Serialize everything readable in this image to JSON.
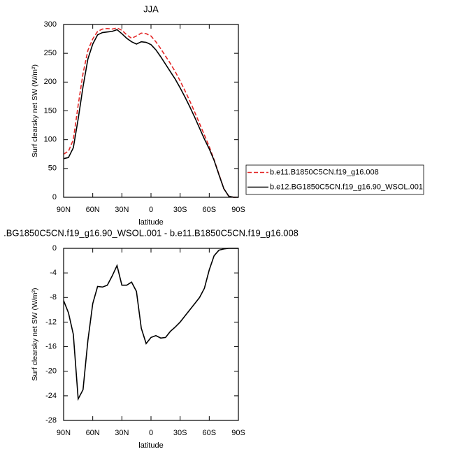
{
  "chart_data": [
    {
      "type": "line",
      "title": "JJA",
      "xlabel": "latitude",
      "ylabel": "Surf clearsky net SW (W/m²)",
      "x": [
        90,
        85,
        80,
        75,
        70,
        65,
        60,
        55,
        50,
        45,
        40,
        35,
        30,
        25,
        20,
        15,
        10,
        5,
        0,
        -5,
        -10,
        -15,
        -20,
        -25,
        -30,
        -35,
        -40,
        -45,
        -50,
        -55,
        -60,
        -65,
        -70,
        -75,
        -80,
        -85,
        -90
      ],
      "xlim": [
        90,
        -90
      ],
      "xticks": [
        {
          "value": 90,
          "label": "90N"
        },
        {
          "value": 60,
          "label": "60N"
        },
        {
          "value": 30,
          "label": "30N"
        },
        0,
        {
          "value": -30,
          "label": "30S"
        },
        {
          "value": -60,
          "label": "60S"
        },
        {
          "value": -90,
          "label": "90S"
        }
      ],
      "ylim": [
        0,
        300
      ],
      "yticks": [
        0,
        50,
        100,
        150,
        200,
        250,
        300
      ],
      "legend": "outside-right",
      "series": [
        {
          "name": "b.e11.B1850C5CN.f19_g16.008",
          "color": "#e32626",
          "style": "dashed",
          "values": [
            75,
            80,
            100,
            160,
            215,
            255,
            275,
            288,
            292,
            293,
            292,
            294,
            290,
            282,
            276,
            280,
            285,
            284,
            280,
            270,
            258,
            245,
            232,
            218,
            202,
            185,
            167,
            148,
            128,
            108,
            88,
            65,
            40,
            15,
            2,
            0,
            0
          ]
        },
        {
          "name": "b.e12.BG1850C5CN.f19_g16.90_WSOL.001",
          "color": "#000000",
          "style": "solid",
          "values": [
            67,
            69,
            86,
            136,
            192,
            240,
            266,
            282,
            286,
            287,
            288,
            291,
            284,
            276,
            270,
            266,
            270,
            269,
            265,
            256,
            244,
            231,
            218,
            205,
            190,
            174,
            157,
            139,
            120,
            101,
            84,
            64,
            39,
            15,
            2,
            0,
            0
          ]
        }
      ]
    },
    {
      "type": "line",
      "title": ".BG1850C5CN.f19_g16.90_WSOL.001 - b.e11.B1850C5CN.f19_g16.008",
      "xlabel": "latitude",
      "ylabel": "Surf clearsky net SW (W/m²)",
      "x": [
        90,
        85,
        80,
        75,
        70,
        65,
        60,
        55,
        50,
        45,
        40,
        35,
        30,
        25,
        20,
        15,
        10,
        5,
        0,
        -5,
        -10,
        -15,
        -20,
        -25,
        -30,
        -35,
        -40,
        -45,
        -50,
        -55,
        -60,
        -65,
        -70,
        -75,
        -80,
        -85,
        -90
      ],
      "xlim": [
        90,
        -90
      ],
      "xticks": [
        {
          "value": 90,
          "label": "90N"
        },
        {
          "value": 60,
          "label": "60N"
        },
        {
          "value": 30,
          "label": "30N"
        },
        0,
        {
          "value": -30,
          "label": "30S"
        },
        {
          "value": -60,
          "label": "60S"
        },
        {
          "value": -90,
          "label": "90S"
        }
      ],
      "ylim": [
        -28,
        0
      ],
      "yticks": [
        -28,
        -24,
        -20,
        -16,
        -12,
        -8,
        -4,
        0
      ],
      "color": "#000000",
      "values": [
        -8.5,
        -10.5,
        -14,
        -24.5,
        -23,
        -15,
        -9,
        -6.2,
        -6.3,
        -6,
        -4.5,
        -2.8,
        -6,
        -6,
        -5.5,
        -7,
        -13,
        -15.5,
        -14.5,
        -14.2,
        -14.6,
        -14.5,
        -13.5,
        -12.8,
        -12,
        -11,
        -10,
        -9,
        -8,
        -6.5,
        -3.5,
        -1.2,
        -0.3,
        -0.1,
        0,
        0,
        0
      ]
    }
  ]
}
